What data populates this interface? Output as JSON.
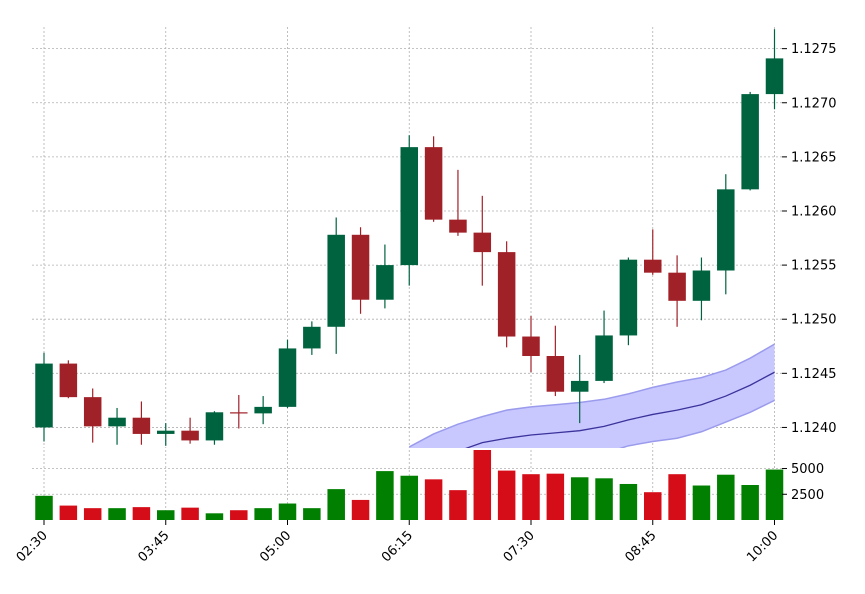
{
  "chart_data": {
    "type": "candlestick",
    "price_panel": {
      "y_ticks": [
        "1.1240",
        "1.1245",
        "1.1250",
        "1.1255",
        "1.1260",
        "1.1265",
        "1.1270",
        "1.1275"
      ],
      "ylim": [
        1.12381,
        1.1277
      ],
      "grid": true,
      "candles": [
        {
          "o": 1.124,
          "h": 1.12469,
          "l": 1.12387,
          "c": 1.12459
        },
        {
          "o": 1.12459,
          "h": 1.12462,
          "l": 1.12427,
          "c": 1.12428
        },
        {
          "o": 1.12428,
          "h": 1.12436,
          "l": 1.12386,
          "c": 1.12401
        },
        {
          "o": 1.12401,
          "h": 1.12418,
          "l": 1.12384,
          "c": 1.12409
        },
        {
          "o": 1.12409,
          "h": 1.12424,
          "l": 1.12384,
          "c": 1.12394
        },
        {
          "o": 1.12394,
          "h": 1.12404,
          "l": 1.12383,
          "c": 1.12397
        },
        {
          "o": 1.12397,
          "h": 1.12409,
          "l": 1.12385,
          "c": 1.12388
        },
        {
          "o": 1.12388,
          "h": 1.12415,
          "l": 1.12384,
          "c": 1.12414
        },
        {
          "o": 1.12414,
          "h": 1.1243,
          "l": 1.12399,
          "c": 1.12413
        },
        {
          "o": 1.12413,
          "h": 1.12429,
          "l": 1.12403,
          "c": 1.12419
        },
        {
          "o": 1.12419,
          "h": 1.12481,
          "l": 1.12418,
          "c": 1.12473
        },
        {
          "o": 1.12473,
          "h": 1.12498,
          "l": 1.12467,
          "c": 1.12493
        },
        {
          "o": 1.12493,
          "h": 1.12594,
          "l": 1.12468,
          "c": 1.12578
        },
        {
          "o": 1.12578,
          "h": 1.12585,
          "l": 1.12505,
          "c": 1.12518
        },
        {
          "o": 1.12518,
          "h": 1.12569,
          "l": 1.1251,
          "c": 1.1255
        },
        {
          "o": 1.1255,
          "h": 1.1267,
          "l": 1.12531,
          "c": 1.12659
        },
        {
          "o": 1.12659,
          "h": 1.12669,
          "l": 1.1259,
          "c": 1.12592
        },
        {
          "o": 1.12592,
          "h": 1.12638,
          "l": 1.12577,
          "c": 1.1258
        },
        {
          "o": 1.1258,
          "h": 1.12614,
          "l": 1.12531,
          "c": 1.12562
        },
        {
          "o": 1.12562,
          "h": 1.12572,
          "l": 1.12474,
          "c": 1.12484
        },
        {
          "o": 1.12484,
          "h": 1.12503,
          "l": 1.12451,
          "c": 1.12466
        },
        {
          "o": 1.12466,
          "h": 1.12494,
          "l": 1.12429,
          "c": 1.12433
        },
        {
          "o": 1.12433,
          "h": 1.12467,
          "l": 1.12404,
          "c": 1.12443
        },
        {
          "o": 1.12443,
          "h": 1.12508,
          "l": 1.12441,
          "c": 1.12485
        },
        {
          "o": 1.12485,
          "h": 1.12557,
          "l": 1.12476,
          "c": 1.12555
        },
        {
          "o": 1.12555,
          "h": 1.12583,
          "l": 1.12541,
          "c": 1.12543
        },
        {
          "o": 1.12543,
          "h": 1.12559,
          "l": 1.12493,
          "c": 1.12517
        },
        {
          "o": 1.12517,
          "h": 1.12557,
          "l": 1.12499,
          "c": 1.12545
        },
        {
          "o": 1.12545,
          "h": 1.12634,
          "l": 1.12523,
          "c": 1.1262
        },
        {
          "o": 1.1262,
          "h": 1.1271,
          "l": 1.12619,
          "c": 1.12708
        },
        {
          "o": 1.12708,
          "h": 1.12768,
          "l": 1.12694,
          "c": 1.12741
        }
      ],
      "band": {
        "start_index": 15,
        "middle": [
          1.12352,
          1.12365,
          1.12378,
          1.12386,
          1.1239,
          1.12393,
          1.12395,
          1.12397,
          1.12401,
          1.12407,
          1.12412,
          1.12416,
          1.12421,
          1.12429,
          1.12439,
          1.12451
        ],
        "upper": [
          1.12382,
          1.12394,
          1.12403,
          1.1241,
          1.12416,
          1.12419,
          1.12421,
          1.12423,
          1.12426,
          1.12431,
          1.12437,
          1.12442,
          1.12446,
          1.12453,
          1.12464,
          1.12477
        ],
        "lower": [
          1.12322,
          1.12336,
          1.12353,
          1.12362,
          1.12364,
          1.12367,
          1.12369,
          1.12371,
          1.12376,
          1.12383,
          1.12387,
          1.1239,
          1.12396,
          1.12405,
          1.12414,
          1.12425
        ]
      }
    },
    "volume_panel": {
      "y_ticks": [
        "2500",
        "5000"
      ],
      "ylim": [
        0,
        6800
      ],
      "volumes": [
        2350,
        1400,
        1150,
        1150,
        1250,
        950,
        1200,
        650,
        950,
        1150,
        1600,
        1150,
        3000,
        1950,
        4750,
        4300,
        3950,
        2900,
        6800,
        4800,
        4450,
        4500,
        4150,
        4050,
        3500,
        2700,
        4450,
        3350,
        4400,
        3400,
        4900
      ]
    },
    "x_ticks": [
      {
        "index": 0,
        "label": "02:30"
      },
      {
        "index": 5,
        "label": "03:45"
      },
      {
        "index": 10,
        "label": "05:00"
      },
      {
        "index": 15,
        "label": "06:15"
      },
      {
        "index": 20,
        "label": "07:30"
      },
      {
        "index": 25,
        "label": "08:45"
      },
      {
        "index": 30,
        "label": "10:00"
      }
    ],
    "colors": {
      "up_body": "#006340",
      "down_body": "#a02128",
      "vol_up": "#007f00",
      "vol_down": "#d50d18",
      "band_fill": "#c8c8ff",
      "band_edge": "#9b9bed",
      "band_mid": "#3c329b"
    }
  }
}
